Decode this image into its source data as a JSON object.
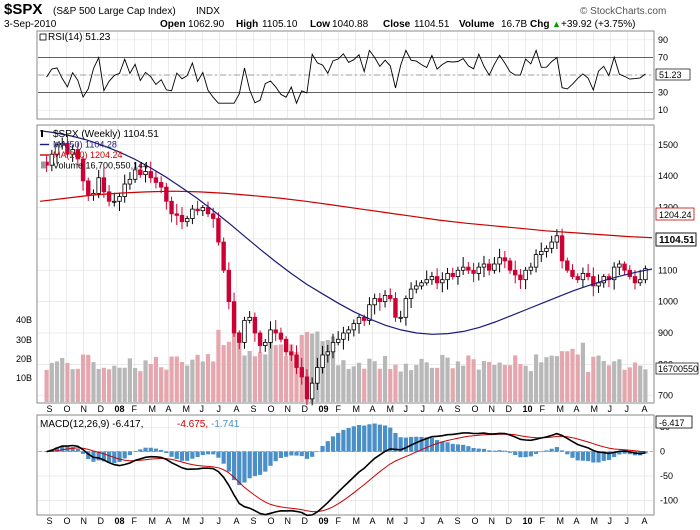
{
  "header": {
    "symbol": "$SPX",
    "name": "(S&P 500 Large Cap Index)",
    "exchange": "INDX",
    "date": "3-Sep-2010",
    "watermark": "© StockCharts.com",
    "open_label": "Open",
    "open": "1062.90",
    "high_label": "High",
    "high": "1105.10",
    "low_label": "Low",
    "low": "1040.88",
    "close_label": "Close",
    "close": "1104.51",
    "volume_label": "Volume",
    "volume": "16.7B",
    "chg_label": "Chg",
    "chg": "+39.92 (+3.75%)",
    "chg_arrow": "▲"
  },
  "rsi_panel": {
    "label": "RSI(14) 51.23",
    "current": "51.23",
    "ticks": [
      "90",
      "70",
      "50",
      "30",
      "10"
    ]
  },
  "price_panel": {
    "legend": [
      {
        "text": "$SPX (Weekly) 1104.51",
        "color": "#000000"
      },
      {
        "text": "MA(50) 1104.28",
        "color": "#1a1a7a"
      },
      {
        "text": "MA(200) 1204.24",
        "color": "#cc0000"
      },
      {
        "text": "Volume 16,700,550,144",
        "color": "#000000"
      }
    ],
    "price_ticks": [
      "1500",
      "1400",
      "1300",
      "1200",
      "1100",
      "1000",
      "900",
      "800",
      "700"
    ],
    "volume_ticks": [
      "40B",
      "30B",
      "20B",
      "10B"
    ],
    "last_price": "1104.51",
    "ma200_value": "1204.24",
    "volume_value": "16700550"
  },
  "macd_panel": {
    "label_main": "MACD(12,26,9) -6.417,",
    "label_signal": "-4.675,",
    "label_hist": "-1.741",
    "current": "-6.417",
    "ticks": [
      "50",
      "0",
      "-50",
      "-100"
    ]
  },
  "x_axis": {
    "months": [
      "S",
      "O",
      "N",
      "D",
      "08",
      "F",
      "M",
      "A",
      "M",
      "J",
      "J",
      "A",
      "S",
      "O",
      "N",
      "D",
      "09",
      "F",
      "M",
      "A",
      "M",
      "J",
      "J",
      "A",
      "S",
      "O",
      "N",
      "D",
      "10",
      "F",
      "M",
      "A",
      "M",
      "J",
      "J",
      "A"
    ]
  },
  "colors": {
    "up": "#000000",
    "down": "#cc0033",
    "ma50": "#1a1a7a",
    "ma200": "#cc0000",
    "vol_up": "#b8b8b8",
    "vol_down": "#e6a6ad",
    "macd_hist": "#4a8fc8",
    "grid": "#e4e4e4"
  },
  "chart_data": {
    "type": "candlestick",
    "title": "$SPX (Weekly) 1104.51",
    "price_ylim": [
      680,
      1560
    ],
    "price_series": [
      1435,
      1470,
      1500,
      1505,
      1470,
      1485,
      1455,
      1385,
      1340,
      1345,
      1395,
      1350,
      1320,
      1320,
      1335,
      1375,
      1390,
      1420,
      1405,
      1415,
      1395,
      1380,
      1365,
      1320,
      1280,
      1275,
      1255,
      1265,
      1295,
      1290,
      1300,
      1280,
      1265,
      1190,
      1100,
      1000,
      900,
      870,
      940,
      950,
      900,
      860,
      870,
      910,
      900,
      880,
      840,
      830,
      790,
      760,
      690,
      740,
      790,
      830,
      840,
      870,
      880,
      900,
      910,
      930,
      950,
      940,
      990,
      1010,
      1000,
      1020,
      1010,
      950,
      950,
      1010,
      1040,
      1050,
      1060,
      1070,
      1080,
      1060,
      1070,
      1090,
      1080,
      1100,
      1110,
      1100,
      1090,
      1110,
      1120,
      1100,
      1120,
      1140,
      1130,
      1100,
      1085,
      1070,
      1100,
      1110,
      1150,
      1160,
      1170,
      1190,
      1210,
      1130,
      1100,
      1080,
      1070,
      1090,
      1080,
      1050,
      1060,
      1080,
      1070,
      1110,
      1120,
      1100,
      1080,
      1060,
      1070,
      1105
    ],
    "ma50_ylim_series": [
      1545,
      1538,
      1528,
      1515,
      1498,
      1478,
      1455,
      1428,
      1398,
      1365,
      1330,
      1292,
      1252,
      1210,
      1168,
      1128,
      1090,
      1055,
      1025,
      995,
      968,
      945,
      925,
      910,
      900,
      896,
      898,
      905,
      918,
      935,
      955,
      975,
      995,
      1015,
      1035,
      1052,
      1068,
      1082,
      1094,
      1104
    ],
    "ma200_series": [
      1320,
      1330,
      1340,
      1346,
      1350,
      1352,
      1350,
      1345,
      1338,
      1330,
      1320,
      1308,
      1296,
      1284,
      1272,
      1260,
      1250,
      1242,
      1234,
      1226,
      1220,
      1214,
      1208,
      1204
    ],
    "rsi_range": [
      0,
      100
    ],
    "rsi_last": 51.23,
    "macd_range": [
      -130,
      75
    ],
    "macd_last": -6.417,
    "signal_last": -4.675,
    "hist_last": -1.741,
    "volume_last_B": 16.7
  }
}
